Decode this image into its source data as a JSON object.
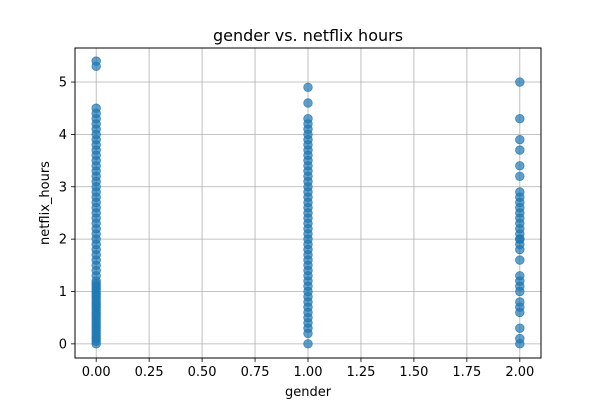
{
  "chart_data": {
    "type": "scatter",
    "title": "gender vs. netflix hours",
    "xlabel": "gender",
    "ylabel": "netflix_hours",
    "xlim": [
      -0.1,
      2.1
    ],
    "ylim": [
      -0.27,
      5.65
    ],
    "xticks": [
      0.0,
      0.25,
      0.5,
      0.75,
      1.0,
      1.25,
      1.5,
      1.75,
      2.0
    ],
    "xtick_labels": [
      "0.00",
      "0.25",
      "0.50",
      "0.75",
      "1.00",
      "1.25",
      "1.50",
      "1.75",
      "2.00"
    ],
    "yticks": [
      0,
      1,
      2,
      3,
      4,
      5
    ],
    "ytick_labels": [
      "0",
      "1",
      "2",
      "3",
      "4",
      "5"
    ],
    "grid": true,
    "color": "#1f77b4",
    "series": [
      {
        "x": [
          0,
          0,
          0,
          0,
          0,
          0,
          0,
          0,
          0,
          0,
          0,
          0,
          0,
          0,
          0,
          0,
          0,
          0,
          0,
          0,
          0,
          0,
          0,
          0,
          0,
          0,
          0,
          0,
          0,
          0,
          0,
          0,
          0,
          0,
          0,
          0,
          0,
          0,
          0,
          0,
          0,
          0,
          0,
          0,
          0,
          0,
          0,
          0,
          0,
          0,
          0,
          0,
          0,
          0,
          0,
          0,
          0,
          0,
          0,
          0,
          1,
          1,
          1,
          1,
          1,
          1,
          1,
          1,
          1,
          1,
          1,
          1,
          1,
          1,
          1,
          1,
          1,
          1,
          1,
          1,
          1,
          1,
          1,
          1,
          1,
          1,
          1,
          1,
          1,
          1,
          1,
          1,
          1,
          1,
          1,
          1,
          1,
          1,
          1,
          1,
          1,
          1,
          1,
          1,
          1,
          2,
          2,
          2,
          2,
          2,
          2,
          2,
          2,
          2,
          2,
          2,
          2,
          2,
          2,
          2,
          2,
          2,
          2,
          2,
          2,
          2,
          2,
          2,
          2,
          2,
          2,
          2,
          2,
          2,
          2
        ],
        "y": [
          5.4,
          5.3,
          4.5,
          4.4,
          4.3,
          4.2,
          4.1,
          4.0,
          3.9,
          3.8,
          3.7,
          3.6,
          3.5,
          3.4,
          3.3,
          3.2,
          3.1,
          3.0,
          2.9,
          2.8,
          2.7,
          2.6,
          2.5,
          2.4,
          2.3,
          2.2,
          2.1,
          2.0,
          1.9,
          1.8,
          1.7,
          1.6,
          1.5,
          1.4,
          1.3,
          1.2,
          1.1,
          1.0,
          0.9,
          0.8,
          0.7,
          0.6,
          0.5,
          0.4,
          0.3,
          0.2,
          0.1,
          0.0,
          0.05,
          0.15,
          0.25,
          0.35,
          0.45,
          0.55,
          0.65,
          0.75,
          0.85,
          0.95,
          1.05,
          1.15,
          4.9,
          4.6,
          4.3,
          4.2,
          4.1,
          4.0,
          3.9,
          3.8,
          3.7,
          3.6,
          3.5,
          3.4,
          3.3,
          3.2,
          3.1,
          3.0,
          2.9,
          2.8,
          2.7,
          2.6,
          2.5,
          2.4,
          2.3,
          2.2,
          2.1,
          2.0,
          1.9,
          1.8,
          1.7,
          1.6,
          1.5,
          1.4,
          1.3,
          1.2,
          1.1,
          1.0,
          0.9,
          0.8,
          0.7,
          0.6,
          0.5,
          0.4,
          0.3,
          0.2,
          0.0,
          5.0,
          4.3,
          3.9,
          3.7,
          3.4,
          3.2,
          2.9,
          2.8,
          2.7,
          2.6,
          2.5,
          2.4,
          2.3,
          2.1,
          2.0,
          1.9,
          1.8,
          1.6,
          1.3,
          1.2,
          1.0,
          0.8,
          0.7,
          0.6,
          0.3,
          0.1,
          0.0,
          2.2,
          1.1,
          2.0
        ]
      }
    ]
  }
}
